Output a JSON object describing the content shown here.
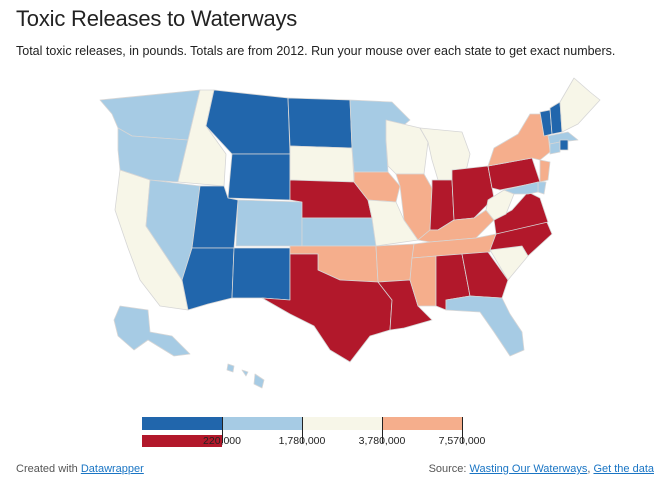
{
  "header": {
    "title": "Toxic Releases to Waterways",
    "subtitle": "Total toxic releases, in pounds. Totals are from 2012. Run your mouse over each state to get exact numbers."
  },
  "map": {
    "states": [
      {
        "code": "WA",
        "class": "c2"
      },
      {
        "code": "OR",
        "class": "c2"
      },
      {
        "code": "CA",
        "class": "c3"
      },
      {
        "code": "NV",
        "class": "c2"
      },
      {
        "code": "ID",
        "class": "c3"
      },
      {
        "code": "MT",
        "class": "c1"
      },
      {
        "code": "WY",
        "class": "c1"
      },
      {
        "code": "UT",
        "class": "c1"
      },
      {
        "code": "AZ",
        "class": "c1"
      },
      {
        "code": "CO",
        "class": "c2"
      },
      {
        "code": "NM",
        "class": "c1"
      },
      {
        "code": "ND",
        "class": "c1"
      },
      {
        "code": "SD",
        "class": "c3"
      },
      {
        "code": "NE",
        "class": "c5"
      },
      {
        "code": "KS",
        "class": "c2"
      },
      {
        "code": "OK",
        "class": "c4"
      },
      {
        "code": "TX",
        "class": "c5"
      },
      {
        "code": "MN",
        "class": "c2"
      },
      {
        "code": "IA",
        "class": "c4"
      },
      {
        "code": "MO",
        "class": "c3"
      },
      {
        "code": "AR",
        "class": "c4"
      },
      {
        "code": "LA",
        "class": "c5"
      },
      {
        "code": "WI",
        "class": "c3"
      },
      {
        "code": "IL",
        "class": "c4"
      },
      {
        "code": "MI",
        "class": "c3"
      },
      {
        "code": "IN",
        "class": "c5"
      },
      {
        "code": "OH",
        "class": "c5"
      },
      {
        "code": "KY",
        "class": "c4"
      },
      {
        "code": "TN",
        "class": "c4"
      },
      {
        "code": "MS",
        "class": "c4"
      },
      {
        "code": "AL",
        "class": "c5"
      },
      {
        "code": "GA",
        "class": "c5"
      },
      {
        "code": "FL",
        "class": "c2"
      },
      {
        "code": "SC",
        "class": "c3"
      },
      {
        "code": "NC",
        "class": "c5"
      },
      {
        "code": "VA",
        "class": "c5"
      },
      {
        "code": "WV",
        "class": "c3"
      },
      {
        "code": "PA",
        "class": "c5"
      },
      {
        "code": "NY",
        "class": "c4"
      },
      {
        "code": "VT",
        "class": "c1"
      },
      {
        "code": "NH",
        "class": "c1"
      },
      {
        "code": "ME",
        "class": "c3"
      },
      {
        "code": "MA",
        "class": "c2"
      },
      {
        "code": "RI",
        "class": "c1"
      },
      {
        "code": "CT",
        "class": "c2"
      },
      {
        "code": "NJ",
        "class": "c4"
      },
      {
        "code": "DE",
        "class": "c2"
      },
      {
        "code": "MD",
        "class": "c2"
      },
      {
        "code": "AK",
        "class": "c2"
      },
      {
        "code": "HI",
        "class": "c2"
      }
    ],
    "palette": {
      "c1": "#2166ac",
      "c2": "#a6cbe4",
      "c3": "#f7f6e8",
      "c4": "#f5ae8c",
      "c5": "#b2182b"
    }
  },
  "legend": {
    "labels": [
      "220,000",
      "1,780,000",
      "3,780,000",
      "7,570,000"
    ],
    "colors": [
      "#2166ac",
      "#a6cbe4",
      "#f7f6e8",
      "#f5ae8c"
    ],
    "lower_color": "#b2182b"
  },
  "footer": {
    "created_prefix": "Created with",
    "created_link": "Datawrapper",
    "source_prefix": "Source:",
    "source_link": "Wasting Our Waterways",
    "separator": ",",
    "data_link": "Get the data"
  }
}
